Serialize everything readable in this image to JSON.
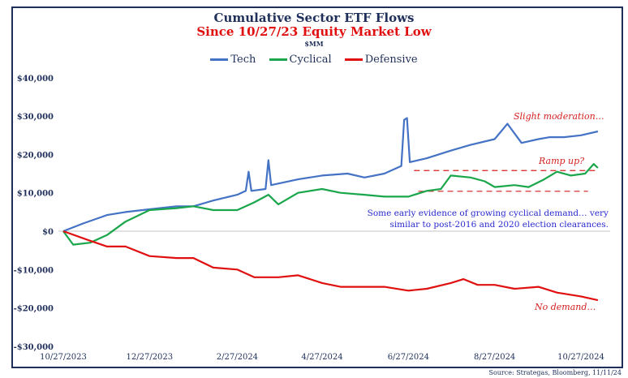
{
  "chart_data": {
    "type": "line",
    "title": "Cumulative Sector ETF Flows",
    "subtitle": "Since 10/27/23 Equity Market Low",
    "unit": "$MM",
    "source": "Source: Strategas, Bloomberg, 11/11/24",
    "ylim": [
      -30000,
      40000
    ],
    "yticks": [
      40000,
      30000,
      20000,
      10000,
      0,
      -10000,
      -20000,
      -30000
    ],
    "ytick_labels": [
      "$40,000",
      "$30,000",
      "$20,000",
      "$10,000",
      "$0",
      "-$10,000",
      "-$20,000",
      "-$30,000"
    ],
    "xticks": [
      "2023-10-27",
      "2023-12-27",
      "2024-02-27",
      "2024-04-27",
      "2024-06-27",
      "2024-08-27",
      "2024-10-27"
    ],
    "xtick_labels": [
      "10/27/2023",
      "12/27/2023",
      "2/27/2024",
      "4/27/2024",
      "6/27/2024",
      "8/27/2024",
      "10/27/2024"
    ],
    "xlim": [
      "2023-10-27",
      "2024-11-10"
    ],
    "legend_position": "top-center",
    "grid": false,
    "series": [
      {
        "name": "Tech",
        "color": "#4472c4",
        "points": [
          [
            "2023-10-27",
            0
          ],
          [
            "2023-11-10",
            2000
          ],
          [
            "2023-11-27",
            4200
          ],
          [
            "2023-12-10",
            5000
          ],
          [
            "2023-12-27",
            5700
          ],
          [
            "2024-01-15",
            6500
          ],
          [
            "2024-01-27",
            6500
          ],
          [
            "2024-02-10",
            8000
          ],
          [
            "2024-02-27",
            9500
          ],
          [
            "2024-03-04",
            10500
          ],
          [
            "2024-03-06",
            15500
          ],
          [
            "2024-03-08",
            10500
          ],
          [
            "2024-03-18",
            11000
          ],
          [
            "2024-03-20",
            18500
          ],
          [
            "2024-03-22",
            12000
          ],
          [
            "2024-04-10",
            13500
          ],
          [
            "2024-04-27",
            14500
          ],
          [
            "2024-05-15",
            15000
          ],
          [
            "2024-05-27",
            14000
          ],
          [
            "2024-06-10",
            15000
          ],
          [
            "2024-06-22",
            17000
          ],
          [
            "2024-06-24",
            29000
          ],
          [
            "2024-06-26",
            29500
          ],
          [
            "2024-06-28",
            18000
          ],
          [
            "2024-07-10",
            19000
          ],
          [
            "2024-07-27",
            21000
          ],
          [
            "2024-08-10",
            22500
          ],
          [
            "2024-08-27",
            24000
          ],
          [
            "2024-09-05",
            28000
          ],
          [
            "2024-09-15",
            23000
          ],
          [
            "2024-09-27",
            24000
          ],
          [
            "2024-10-05",
            24500
          ],
          [
            "2024-10-15",
            24500
          ],
          [
            "2024-10-27",
            25000
          ],
          [
            "2024-11-08",
            26000
          ]
        ]
      },
      {
        "name": "Cyclical",
        "color": "#1aa64a",
        "points": [
          [
            "2023-10-27",
            0
          ],
          [
            "2023-11-03",
            -3500
          ],
          [
            "2023-11-15",
            -3000
          ],
          [
            "2023-11-27",
            -1000
          ],
          [
            "2023-12-10",
            2500
          ],
          [
            "2023-12-27",
            5500
          ],
          [
            "2024-01-15",
            6000
          ],
          [
            "2024-01-27",
            6500
          ],
          [
            "2024-02-10",
            5500
          ],
          [
            "2024-02-27",
            5500
          ],
          [
            "2024-03-10",
            7500
          ],
          [
            "2024-03-20",
            9500
          ],
          [
            "2024-03-27",
            7000
          ],
          [
            "2024-04-10",
            10000
          ],
          [
            "2024-04-27",
            11000
          ],
          [
            "2024-05-10",
            10000
          ],
          [
            "2024-05-27",
            9500
          ],
          [
            "2024-06-10",
            9000
          ],
          [
            "2024-06-27",
            9000
          ],
          [
            "2024-07-10",
            10500
          ],
          [
            "2024-07-20",
            11000
          ],
          [
            "2024-07-27",
            14500
          ],
          [
            "2024-08-10",
            14000
          ],
          [
            "2024-08-20",
            13000
          ],
          [
            "2024-08-27",
            11500
          ],
          [
            "2024-09-10",
            12000
          ],
          [
            "2024-09-20",
            11500
          ],
          [
            "2024-10-01",
            13500
          ],
          [
            "2024-10-10",
            15500
          ],
          [
            "2024-10-20",
            14500
          ],
          [
            "2024-10-30",
            15000
          ],
          [
            "2024-11-05",
            17500
          ],
          [
            "2024-11-08",
            16500
          ]
        ]
      },
      {
        "name": "Defensive",
        "color": "#e01010",
        "points": [
          [
            "2023-10-27",
            0
          ],
          [
            "2023-11-15",
            -2500
          ],
          [
            "2023-11-27",
            -4000
          ],
          [
            "2023-12-10",
            -4000
          ],
          [
            "2023-12-27",
            -6500
          ],
          [
            "2024-01-15",
            -7000
          ],
          [
            "2024-01-27",
            -7000
          ],
          [
            "2024-02-10",
            -9500
          ],
          [
            "2024-02-27",
            -10000
          ],
          [
            "2024-03-10",
            -12000
          ],
          [
            "2024-03-27",
            -12000
          ],
          [
            "2024-04-10",
            -11500
          ],
          [
            "2024-04-27",
            -13500
          ],
          [
            "2024-05-10",
            -14500
          ],
          [
            "2024-05-27",
            -14500
          ],
          [
            "2024-06-10",
            -14500
          ],
          [
            "2024-06-27",
            -15500
          ],
          [
            "2024-07-10",
            -15000
          ],
          [
            "2024-07-27",
            -13500
          ],
          [
            "2024-08-05",
            -12500
          ],
          [
            "2024-08-15",
            -14000
          ],
          [
            "2024-08-27",
            -14000
          ],
          [
            "2024-09-10",
            -15000
          ],
          [
            "2024-09-27",
            -14500
          ],
          [
            "2024-10-10",
            -16000
          ],
          [
            "2024-10-27",
            -17000
          ],
          [
            "2024-11-08",
            -18000
          ]
        ]
      }
    ],
    "reference_lines": [
      {
        "value": 15800,
        "from": "2024-07-01",
        "to": "2024-11-06",
        "style": "dashed",
        "color": "#d42020"
      },
      {
        "value": 10400,
        "from": "2024-07-04",
        "to": "2024-11-01",
        "style": "dashed",
        "color": "#d42020"
      }
    ],
    "annotations": {
      "slight": "Slight moderation…",
      "ramp": "Ramp up?",
      "nodemand": "No demand…",
      "note_line1": "Some early evidence of growing cyclical demand… very",
      "note_line2": "similar to post-2016 and 2020 election clearances."
    }
  }
}
